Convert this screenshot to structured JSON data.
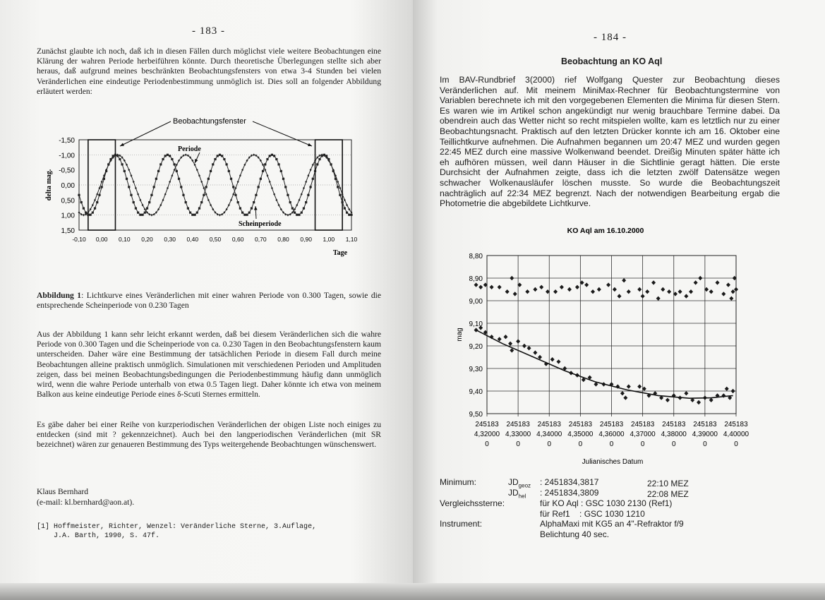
{
  "left_page": {
    "page_number": "- 183 -",
    "paragraph_1": "Zunächst glaubte ich noch, daß ich in diesen Fällen durch möglichst viele weitere Beobachtungen eine Klärung der wahren Periode herbeiführen könnte. Durch theoretische Überlegungen stellte sich aber heraus, daß aufgrund meines beschränkten Beobachtungsfensters von etwa 3-4 Stunden bei vielen Veränderlichen eine eindeutige Periodenbestimmung unmöglich ist. Dies soll an folgender Abbildung erläutert werden:",
    "caption_label": "Abbildung 1",
    "caption_text": ": Lichtkurve eines Veränderlichen mit einer wahren Periode von  0.300 Tagen, sowie die entsprechende Scheinperiode von 0.230 Tagen",
    "paragraph_2": "Aus der Abbildung 1 kann sehr leicht erkannt werden, daß bei diesem Veränderlichen sich die wahre Periode von 0.300 Tagen und die Scheinperiode von ca. 0.230 Tagen in den Beobachtungsfenstern kaum unterscheiden. Daher wäre eine Bestimmung der tatsächlichen Periode in diesem Fall durch meine Beobachtungen alleine praktisch unmöglich. Simulationen mit verschiedenen Perioden und Amplituden zeigen, dass bei meinen Beobachtungsbedingungen die Periodenbestimmung häufig dann unmöglich wird, wenn die wahre Periode unterhalb von etwa 0.5 Tagen liegt. Daher könnte ich etwa von meinem Balkon aus keine eindeutige Periode eines δ-Scuti Sternes ermitteln.",
    "paragraph_3": "Es gäbe daher bei einer Reihe von kurzperiodischen Veränderlichen der obigen Liste noch einiges zu entdecken (sind mit ? gekennzeichnet). Auch bei den langperiodischen Veränderlichen (mit SR bezeichnet) wären zur genaueren Bestimmung des Typs weitergehende Beobachtungen wünschenswert.",
    "author": "Klaus Bernhard",
    "email": "(e-mail: kl.bernhard@aon.at).",
    "reference_1": "[1] Hoffmeister, Richter, Wenzel: Veränderliche Sterne, 3.Auflage,",
    "reference_2": "    J.A. Barth, 1990, S. 47f."
  },
  "right_page": {
    "page_number": "- 184 -",
    "heading": "Beobachtung an KO Aql",
    "paragraph": "Im BAV-Rundbrief 3(2000) rief Wolfgang Quester zur Beobachtung dieses Veränderlichen auf.  Mit meinem MiniMax-Rechner für Beobachtungstermine von Variablen berechnete ich mit den vorgegebenen Elementen die Minima für diesen Stern. Es waren wie im Artikel schon angekündigt nur wenig brauchbare Termine dabei. Da obendrein auch das Wetter nicht so recht mitspielen wollte, kam es letztlich nur zu einer Beobachtungsnacht. Praktisch auf den letzten Drücker konnte ich am 16. Oktober eine Teillichtkurve aufnehmen. Die Aufnahmen begannen um 20:47 MEZ und wurden gegen 22:45 MEZ durch eine massive Wolkenwand beendet. Dreißig Minuten später hätte ich eh aufhören müssen, weil dann Häuser in die Sichtlinie geragt hätten. Die erste Durchsicht der Aufnahmen zeigte, dass ich die letzten zwölf Datensätze wegen schwacher Wolkenausläufer löschen musste. So wurde die Beobachtungszeit nachträglich auf 22:34 MEZ begrenzt. Nach der notwendigen Bearbeitung ergab die Photometrie die abgebildete Lichtkurve.",
    "results": {
      "minimum_label": "Minimum:",
      "jd_geoz_label": "JD",
      "jd_geoz_sub": "geoz",
      "jd_geoz_value": ": 2451834,3817",
      "jd_geoz_time": "22:10 MEZ",
      "jd_hel_label": "JD",
      "jd_hel_sub": "hel",
      "jd_hel_value": ": 2451834,3809",
      "jd_hel_time": "22:08 MEZ",
      "comparison_label": "Vergleichssterne:",
      "comparison_1": "für KO Aql : GSC 1030 2130 (Ref1)",
      "comparison_2": "für Ref1    : GSC 1030 1210",
      "instrument_label": "Instrument:",
      "instrument_1": "AlphaMaxi mit KG5 an 4\"-Refraktor f/9",
      "instrument_2": "Belichtung 40 sec."
    }
  },
  "chart_data": [
    {
      "type": "line",
      "title": "",
      "xlabel": "Tage",
      "ylabel": "delta mag.",
      "xlim": [
        -0.1,
        1.1
      ],
      "ylim": [
        -1.5,
        1.5
      ],
      "y_inverted": true,
      "x_ticks": [
        "-0,10",
        "0,00",
        "0,10",
        "0,20",
        "0,30",
        "0,40",
        "0,50",
        "0,60",
        "0,70",
        "0,80",
        "0,90",
        "1,00",
        "1,10"
      ],
      "y_ticks": [
        "-1,50",
        "-1,00",
        "-0,50",
        "0,00",
        "0,50",
        "1,00",
        "1,50"
      ],
      "grid": "dotted horizontal at 0 and ±1",
      "series": [
        {
          "name": "Periode",
          "function": "sinusoid",
          "period": 0.3,
          "amplitude": 1.0,
          "maximum_at": 0.07,
          "sampling": 0.01,
          "marker": "diamond"
        },
        {
          "name": "Scheinperiode",
          "function": "sinusoid",
          "period": 0.23,
          "amplitude": 1.0,
          "maximum_at": 0.06,
          "sampling": 0.01,
          "marker": "square"
        }
      ],
      "observation_windows": [
        [
          -0.06,
          0.06
        ],
        [
          0.94,
          1.06
        ]
      ],
      "annotations": {
        "window": "Beobachtungsfenster",
        "true_period": "Periode",
        "apparent_period": "Scheinperiode"
      }
    },
    {
      "type": "scatter",
      "title": "KO Aql am 16.10.2000",
      "xlabel": "Julianisches Datum",
      "ylabel": "mag",
      "xlim": [
        2451834.32,
        2451834.4
      ],
      "ylim": [
        8.8,
        9.5
      ],
      "y_inverted": true,
      "grid": true,
      "x_ticks": [
        [
          "245183",
          "4,32000",
          "0"
        ],
        [
          "245183",
          "4,33000",
          "0"
        ],
        [
          "245183",
          "4,34000",
          "0"
        ],
        [
          "245183",
          "4,35000",
          "0"
        ],
        [
          "245183",
          "4,36000",
          "0"
        ],
        [
          "245183",
          "4,37000",
          "0"
        ],
        [
          "245183",
          "4,38000",
          "0"
        ],
        [
          "245183",
          "4,39000",
          "0"
        ],
        [
          "245183",
          "4,40000",
          "0"
        ]
      ],
      "y_ticks": [
        "8,80",
        "8,90",
        "9,00",
        "9,10",
        "9,20",
        "9,30",
        "9,40",
        "9,50"
      ],
      "series": [
        {
          "points": [
            [
              2451834.3165,
              8.93
            ],
            [
              2451834.318,
              8.94
            ],
            [
              2451834.3195,
              8.93
            ],
            [
              2451834.3215,
              8.94
            ],
            [
              2451834.324,
              8.94
            ],
            [
              2451834.3265,
              8.96
            ],
            [
              2451834.328,
              8.9
            ],
            [
              2451834.329,
              8.97
            ],
            [
              2451834.3305,
              8.93
            ],
            [
              2451834.333,
              8.96
            ],
            [
              2451834.3355,
              8.95
            ],
            [
              2451834.3375,
              8.94
            ],
            [
              2451834.3395,
              8.96
            ],
            [
              2451834.342,
              8.96
            ],
            [
              2451834.344,
              8.94
            ],
            [
              2451834.3465,
              8.95
            ],
            [
              2451834.349,
              8.94
            ],
            [
              2451834.3505,
              8.92
            ],
            [
              2451834.352,
              8.93
            ],
            [
              2451834.354,
              8.96
            ],
            [
              2451834.356,
              8.95
            ],
            [
              2451834.359,
              8.93
            ],
            [
              2451834.361,
              8.95
            ],
            [
              2451834.3625,
              8.98
            ],
            [
              2451834.364,
              8.91
            ],
            [
              2451834.3655,
              8.96
            ],
            [
              2451834.369,
              8.95
            ],
            [
              2451834.37,
              8.98
            ],
            [
              2451834.3715,
              8.96
            ],
            [
              2451834.3735,
              8.92
            ],
            [
              2451834.375,
              8.99
            ],
            [
              2451834.3765,
              8.95
            ],
            [
              2451834.3785,
              8.96
            ],
            [
              2451834.3805,
              8.97
            ],
            [
              2451834.382,
              8.96
            ],
            [
              2451834.384,
              8.98
            ],
            [
              2451834.3855,
              8.96
            ],
            [
              2451834.387,
              8.92
            ],
            [
              2451834.3885,
              8.9
            ],
            [
              2451834.3905,
              8.95
            ],
            [
              2451834.392,
              8.96
            ],
            [
              2451834.394,
              8.92
            ],
            [
              2451834.396,
              8.97
            ],
            [
              2451834.3975,
              8.93
            ],
            [
              2451834.3985,
              8.99
            ],
            [
              2451834.399,
              8.96
            ],
            [
              2451834.3995,
              8.9
            ],
            [
              2451834.4,
              8.95
            ]
          ]
        },
        {
          "points": [
            [
              2451834.3165,
              9.13
            ],
            [
              2451834.318,
              9.12
            ],
            [
              2451834.3195,
              9.14
            ],
            [
              2451834.3215,
              9.16
            ],
            [
              2451834.324,
              9.17
            ],
            [
              2451834.326,
              9.16
            ],
            [
              2451834.3275,
              9.19
            ],
            [
              2451834.328,
              9.22
            ],
            [
              2451834.33,
              9.18
            ],
            [
              2451834.332,
              9.2
            ],
            [
              2451834.3335,
              9.21
            ],
            [
              2451834.3355,
              9.23
            ],
            [
              2451834.337,
              9.25
            ],
            [
              2451834.339,
              9.28
            ],
            [
              2451834.341,
              9.26
            ],
            [
              2451834.343,
              9.27
            ],
            [
              2451834.345,
              9.3
            ],
            [
              2451834.347,
              9.32
            ],
            [
              2451834.349,
              9.33
            ],
            [
              2451834.351,
              9.35
            ],
            [
              2451834.353,
              9.34
            ],
            [
              2451834.355,
              9.37
            ],
            [
              2451834.3575,
              9.37
            ],
            [
              2451834.36,
              9.37
            ],
            [
              2451834.362,
              9.38
            ],
            [
              2451834.3635,
              9.41
            ],
            [
              2451834.3645,
              9.43
            ],
            [
              2451834.3655,
              9.38
            ],
            [
              2451834.369,
              9.38
            ],
            [
              2451834.3705,
              9.39
            ],
            [
              2451834.372,
              9.42
            ],
            [
              2451834.374,
              9.41
            ],
            [
              2451834.376,
              9.43
            ],
            [
              2451834.378,
              9.44
            ],
            [
              2451834.38,
              9.42
            ],
            [
              2451834.382,
              9.43
            ],
            [
              2451834.384,
              9.41
            ],
            [
              2451834.386,
              9.44
            ],
            [
              2451834.388,
              9.45
            ],
            [
              2451834.39,
              9.43
            ],
            [
              2451834.392,
              9.44
            ],
            [
              2451834.394,
              9.42
            ],
            [
              2451834.396,
              9.42
            ],
            [
              2451834.397,
              9.39
            ],
            [
              2451834.398,
              9.43
            ],
            [
              2451834.399,
              9.4
            ]
          ]
        }
      ],
      "trendline": [
        [
          2451834.3165,
          9.13
        ],
        [
          2451834.325,
          9.19
        ],
        [
          2451834.335,
          9.25
        ],
        [
          2451834.345,
          9.31
        ],
        [
          2451834.355,
          9.36
        ],
        [
          2451834.365,
          9.395
        ],
        [
          2451834.375,
          9.42
        ],
        [
          2451834.385,
          9.432
        ],
        [
          2451834.392,
          9.43
        ],
        [
          2451834.399,
          9.42
        ]
      ]
    }
  ]
}
